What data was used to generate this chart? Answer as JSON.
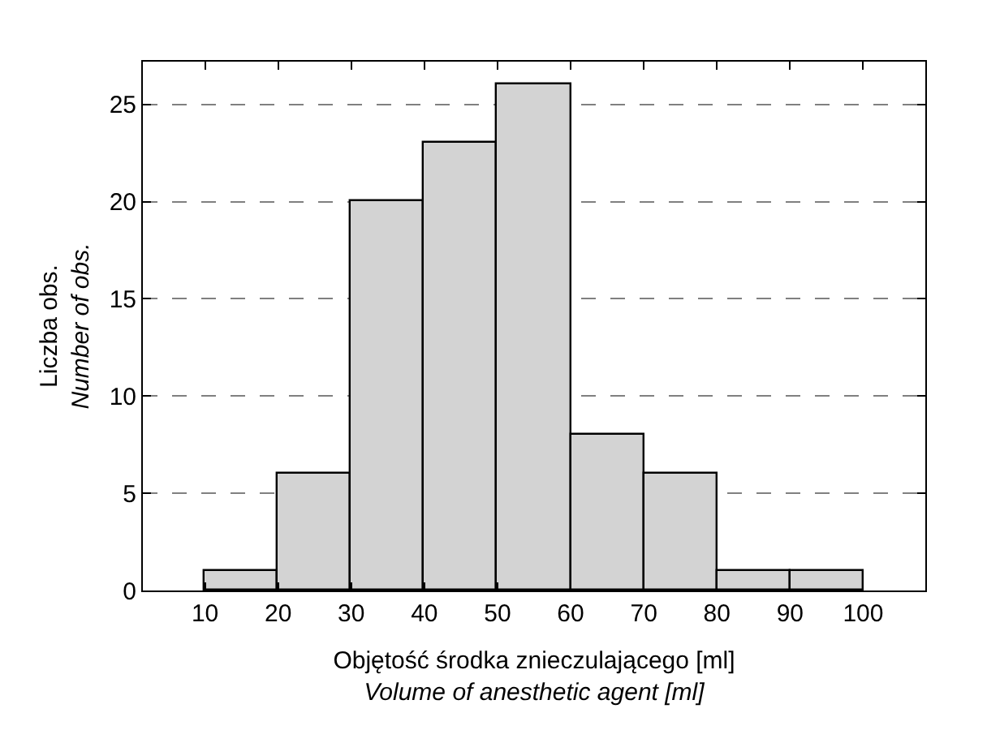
{
  "chart_data": {
    "type": "histogram",
    "xlabel": "Objętość środka znieczulającego [ml]\nVolume of anesthetic agent [ml]",
    "ylabel": "Liczba obs.\nNumber of obs.",
    "bins": [
      10,
      20,
      30,
      40,
      50,
      60,
      70,
      80,
      90,
      100
    ],
    "values": [
      1,
      6,
      20,
      23,
      26,
      8,
      6,
      1,
      1
    ],
    "color": "#d3d3d3",
    "xlim": [
      1.5,
      108.5
    ],
    "xticks": [
      10,
      20,
      30,
      40,
      50,
      60,
      70,
      80,
      90,
      100
    ],
    "ylim": [
      0,
      27.2
    ],
    "yticks": [
      0,
      5,
      10,
      15,
      20,
      25
    ],
    "grid": "y"
  }
}
